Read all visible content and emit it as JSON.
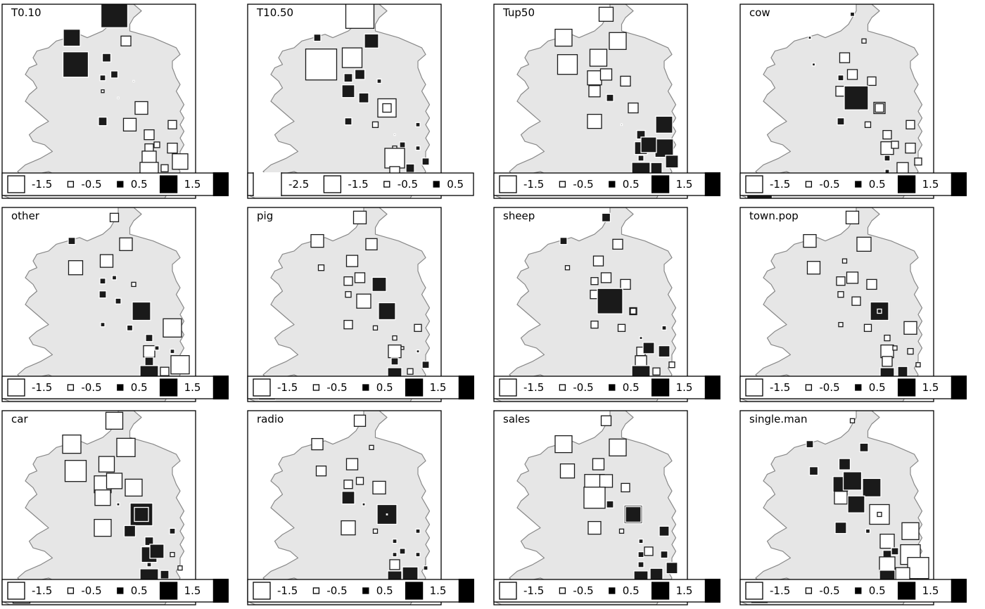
{
  "chart_data": [
    {
      "type": "scatter",
      "subtype": "bubble-square-map",
      "title": "T0.10",
      "legend_values": [
        -1.5,
        -0.5,
        0.5,
        1.5,
        2.5
      ],
      "legend_labels": [
        "-1.5",
        "-0.5",
        "0.5",
        "1.5"
      ],
      "x": [
        29,
        19,
        27,
        18,
        26,
        34,
        29,
        32,
        26,
        26,
        36,
        38,
        30,
        36,
        44,
        33,
        38,
        40,
        44,
        38,
        46,
        42,
        38,
        37,
        5
      ],
      "y": [
        85,
        70,
        72,
        78,
        66,
        65,
        67,
        77,
        53,
        62,
        57,
        49,
        60,
        57,
        45,
        52,
        45,
        46,
        52,
        42,
        41,
        39,
        38,
        34,
        33
      ],
      "values": [
        1.9,
        1.8,
        0.6,
        1.2,
        0.4,
        0.1,
        0.5,
        -0.7,
        0.6,
        -0.2,
        -0.8,
        -0.7,
        0.1,
        -0.9,
        -0.7,
        -0.9,
        -0.6,
        -0.4,
        -0.6,
        -1.0,
        -1.1,
        -0.5,
        -1.3,
        -0.9,
        1.0
      ]
    },
    {
      "type": "scatter",
      "subtype": "bubble-square-map",
      "title": "T10.50",
      "legend_values": [
        -2.5,
        -1.5,
        -0.5,
        0.5,
        1.5
      ],
      "legend_labels": [
        "-2.5",
        "-1.5",
        "-0.5",
        "0.5"
      ],
      "x": [
        29,
        19,
        27,
        18,
        26,
        34,
        29,
        32,
        26,
        26,
        36,
        38,
        30,
        36,
        44,
        33,
        38,
        40,
        44,
        38,
        46,
        42,
        38,
        37,
        5
      ],
      "y": [
        85,
        70,
        72,
        78,
        66,
        65,
        67,
        77,
        53,
        62,
        57,
        49,
        60,
        57,
        45,
        52,
        45,
        46,
        52,
        42,
        41,
        39,
        38,
        34,
        33
      ],
      "values": [
        -2.0,
        -2.2,
        -1.4,
        0.5,
        0.6,
        0.3,
        0.7,
        1.0,
        0.5,
        0.9,
        -1.3,
        0.1,
        0.7,
        -0.6,
        0.3,
        -0.4,
        -0.3,
        0.4,
        0.3,
        -1.4,
        0.5,
        0.6,
        -0.7,
        1.0,
        -0.6
      ]
    },
    {
      "type": "scatter",
      "subtype": "bubble-square-map",
      "title": "Tup50",
      "legend_values": [
        -1.5,
        -0.5,
        0.5,
        1.5,
        2.5
      ],
      "legend_labels": [
        "-1.5",
        "-0.5",
        "0.5",
        "1.5"
      ],
      "x": [
        29,
        19,
        27,
        18,
        26,
        34,
        29,
        32,
        26,
        26,
        36,
        38,
        30,
        36,
        44,
        33,
        38,
        40,
        44,
        38,
        46,
        42,
        38,
        37,
        5
      ],
      "y": [
        85,
        70,
        72,
        78,
        66,
        65,
        67,
        77,
        53,
        62,
        57,
        49,
        60,
        57,
        45,
        52,
        45,
        46,
        52,
        42,
        41,
        39,
        38,
        34,
        33
      ],
      "values": [
        -1.0,
        -1.4,
        -1.2,
        -1.2,
        -1.0,
        -0.7,
        -0.8,
        -1.2,
        -1.0,
        -0.8,
        -0.6,
        0.6,
        0.5,
        -0.7,
        1.3,
        0.1,
        0.9,
        1.1,
        1.2,
        0.4,
        0.9,
        0.8,
        1.3,
        1.2,
        -1.0
      ]
    },
    {
      "type": "scatter",
      "subtype": "bubble-square-map",
      "title": "cow",
      "legend_values": [
        -1.5,
        -0.5,
        0.5,
        1.5,
        2.5
      ],
      "legend_labels": [
        "-1.5",
        "-0.5",
        "0.5",
        "1.5"
      ],
      "x": [
        29,
        19,
        27,
        18,
        26,
        34,
        29,
        32,
        26,
        26,
        36,
        38,
        30,
        36,
        44,
        33,
        38,
        40,
        44,
        38,
        46,
        42,
        38,
        37,
        5
      ],
      "y": [
        85,
        70,
        72,
        78,
        66,
        65,
        67,
        77,
        53,
        62,
        57,
        49,
        60,
        57,
        45,
        52,
        45,
        46,
        52,
        42,
        41,
        39,
        38,
        34,
        33
      ],
      "values": [
        0.3,
        0.2,
        -0.7,
        0.2,
        0.4,
        -0.6,
        -0.7,
        -0.3,
        0.5,
        -0.7,
        -0.8,
        -0.6,
        1.7,
        -0.6,
        -0.7,
        -0.4,
        -0.9,
        -0.5,
        -0.6,
        0.4,
        -0.5,
        -0.8,
        0.3,
        0.3,
        1.8
      ]
    },
    {
      "type": "scatter",
      "subtype": "bubble-square-map",
      "title": "other",
      "legend_values": [
        -1.5,
        -0.5,
        0.5,
        1.5,
        2.5
      ],
      "legend_labels": [
        "-1.5",
        "-0.5",
        "0.5",
        "1.5"
      ],
      "x": [
        29,
        19,
        27,
        18,
        26,
        34,
        29,
        32,
        26,
        26,
        36,
        38,
        30,
        36,
        44,
        33,
        38,
        40,
        44,
        38,
        46,
        42,
        38,
        37,
        5
      ],
      "y": [
        85,
        70,
        72,
        78,
        66,
        65,
        67,
        77,
        53,
        62,
        57,
        49,
        60,
        57,
        45,
        52,
        45,
        46,
        52,
        42,
        41,
        39,
        38,
        34,
        33
      ],
      "values": [
        -0.6,
        -1.0,
        -0.9,
        0.5,
        0.4,
        -0.3,
        0.3,
        -0.9,
        0.3,
        0.5,
        1.2,
        0.5,
        0.4,
        1.3,
        0.3,
        0.4,
        -0.8,
        0.3,
        -1.3,
        0.6,
        -1.3,
        -0.6,
        1.3,
        0.4,
        0.4
      ]
    },
    {
      "type": "scatter",
      "subtype": "bubble-square-map",
      "title": "pig",
      "legend_values": [
        -1.5,
        -0.5,
        0.5,
        1.5,
        2.5
      ],
      "legend_labels": [
        "-1.5",
        "-0.5",
        "0.5",
        "1.5"
      ],
      "x": [
        29,
        19,
        27,
        18,
        26,
        34,
        29,
        32,
        26,
        26,
        36,
        38,
        30,
        36,
        44,
        33,
        38,
        40,
        44,
        38,
        46,
        42,
        38,
        37,
        5
      ],
      "y": [
        85,
        70,
        72,
        78,
        66,
        65,
        67,
        77,
        53,
        62,
        57,
        49,
        60,
        57,
        45,
        52,
        45,
        46,
        52,
        42,
        41,
        39,
        38,
        34,
        33
      ],
      "values": [
        -0.9,
        -0.4,
        -0.8,
        -0.9,
        -0.6,
        1.0,
        -0.7,
        -0.8,
        -0.6,
        -0.4,
        -1.0,
        -0.3,
        -1.0,
        1.2,
        0.2,
        -0.3,
        -0.9,
        -0.2,
        -0.5,
        0.5,
        0.5,
        -0.4,
        1.0,
        1.1,
        1.2
      ]
    },
    {
      "type": "scatter",
      "subtype": "bubble-square-map",
      "title": "sheep",
      "legend_values": [
        -1.5,
        -0.5,
        0.5,
        1.5,
        2.5
      ],
      "legend_labels": [
        "-1.5",
        "-0.5",
        "0.5",
        "1.5"
      ],
      "x": [
        29,
        19,
        27,
        18,
        26,
        34,
        29,
        32,
        26,
        26,
        36,
        38,
        30,
        36,
        44,
        33,
        38,
        40,
        44,
        38,
        46,
        42,
        38,
        37,
        5
      ],
      "y": [
        85,
        70,
        72,
        78,
        66,
        65,
        67,
        77,
        53,
        62,
        57,
        49,
        60,
        57,
        45,
        52,
        45,
        46,
        52,
        42,
        41,
        39,
        38,
        34,
        33
      ],
      "values": [
        0.6,
        -0.3,
        -0.7,
        0.5,
        -0.5,
        -0.7,
        -0.7,
        -0.7,
        -0.5,
        -0.6,
        -0.5,
        0.2,
        1.8,
        -0.4,
        0.8,
        -0.5,
        -0.6,
        0.8,
        0.3,
        -0.8,
        -0.4,
        -0.5,
        1.3,
        1.2,
        0.4
      ]
    },
    {
      "type": "scatter",
      "subtype": "bubble-square-map",
      "title": "town.pop",
      "legend_values": [
        -1.5,
        -0.5,
        0.5,
        1.5,
        2.5
      ],
      "legend_labels": [
        "-1.5",
        "-0.5",
        "0.5",
        "1.5"
      ],
      "x": [
        29,
        19,
        27,
        18,
        26,
        34,
        29,
        32,
        26,
        26,
        36,
        38,
        30,
        36,
        44,
        33,
        38,
        40,
        44,
        38,
        46,
        42,
        38,
        37,
        5
      ],
      "y": [
        85,
        70,
        72,
        78,
        66,
        65,
        67,
        77,
        53,
        62,
        57,
        49,
        60,
        57,
        45,
        52,
        45,
        46,
        52,
        42,
        41,
        39,
        38,
        34,
        33
      ],
      "values": [
        -0.9,
        -0.9,
        -0.3,
        -0.9,
        -0.6,
        -0.7,
        -0.8,
        -1.0,
        -0.3,
        -0.4,
        1.3,
        -0.4,
        -0.6,
        0.3,
        -0.4,
        -0.5,
        -0.9,
        -0.3,
        -0.9,
        -0.7,
        -0.3,
        0.7,
        1.0,
        0.5,
        0.7
      ]
    },
    {
      "type": "scatter",
      "subtype": "bubble-square-map",
      "title": "car",
      "legend_values": [
        -1.5,
        -0.5,
        0.5,
        1.5,
        2.5
      ],
      "legend_labels": [
        "-1.5",
        "-0.5",
        "0.5",
        "1.5"
      ],
      "x": [
        29,
        19,
        27,
        18,
        26,
        34,
        29,
        32,
        26,
        26,
        36,
        38,
        30,
        36,
        44,
        33,
        38,
        40,
        44,
        38,
        46,
        42,
        38,
        37,
        5
      ],
      "y": [
        85,
        70,
        72,
        78,
        66,
        65,
        67,
        77,
        53,
        62,
        57,
        49,
        60,
        57,
        45,
        52,
        45,
        46,
        52,
        42,
        41,
        39,
        38,
        34,
        33
      ],
      "values": [
        -1.2,
        -1.5,
        -1.1,
        -1.3,
        -1.2,
        -1.2,
        -1.1,
        -1.3,
        -1.2,
        -1.1,
        1.6,
        0.6,
        0.2,
        1.0,
        -0.3,
        0.8,
        1.1,
        1.0,
        0.4,
        0.3,
        -0.3,
        0.6,
        1.3,
        1.0,
        -1.2
      ]
    },
    {
      "type": "scatter",
      "subtype": "bubble-square-map",
      "title": "radio",
      "legend_values": [
        -1.5,
        -0.5,
        0.5,
        1.5,
        2.5
      ],
      "legend_labels": [
        "-1.5",
        "-0.5",
        "0.5",
        "1.5"
      ],
      "x": [
        29,
        19,
        27,
        18,
        26,
        34,
        29,
        32,
        26,
        26,
        36,
        38,
        30,
        36,
        44,
        33,
        38,
        40,
        44,
        38,
        46,
        42,
        38,
        37,
        5
      ],
      "y": [
        85,
        70,
        72,
        78,
        66,
        65,
        67,
        77,
        53,
        62,
        57,
        49,
        60,
        57,
        45,
        52,
        45,
        46,
        52,
        42,
        41,
        39,
        38,
        34,
        33
      ],
      "values": [
        -0.8,
        -0.7,
        -0.8,
        -0.8,
        -0.6,
        -0.9,
        -0.5,
        -0.3,
        -1.0,
        0.9,
        1.4,
        0.3,
        0.2,
        -0.2,
        0.3,
        -0.3,
        0.3,
        0.4,
        0.3,
        -0.7,
        0.3,
        1.1,
        1.0,
        0.5,
        -0.8
      ]
    },
    {
      "type": "scatter",
      "subtype": "bubble-square-map",
      "title": "sales",
      "legend_values": [
        -1.5,
        -0.5,
        0.5,
        1.5,
        2.5
      ],
      "legend_labels": [
        "-1.5",
        "-0.5",
        "0.5",
        "1.5"
      ],
      "x": [
        29,
        19,
        27,
        18,
        26,
        34,
        29,
        32,
        26,
        26,
        36,
        38,
        30,
        36,
        44,
        33,
        38,
        40,
        44,
        38,
        46,
        42,
        38,
        37,
        5
      ],
      "y": [
        85,
        70,
        72,
        78,
        66,
        65,
        67,
        77,
        53,
        62,
        57,
        49,
        60,
        57,
        45,
        52,
        45,
        46,
        52,
        42,
        41,
        39,
        38,
        34,
        33
      ],
      "values": [
        -0.7,
        -1.0,
        -0.8,
        -1.2,
        -1.4,
        -0.6,
        -0.9,
        -1.2,
        -0.9,
        -1.5,
        1.3,
        0.3,
        0.5,
        1.1,
        0.5,
        -0.3,
        0.4,
        -0.6,
        0.7,
        0.4,
        0.8,
        0.9,
        1.0,
        0.9,
        -0.8
      ]
    },
    {
      "type": "scatter",
      "subtype": "bubble-square-map",
      "title": "single.man",
      "legend_values": [
        -1.5,
        -0.5,
        0.5,
        1.5,
        2.5
      ],
      "legend_labels": [
        "-1.5",
        "-0.5",
        "0.5",
        "1.5"
      ],
      "x": [
        29,
        19,
        27,
        18,
        26,
        34,
        29,
        32,
        26,
        26,
        36,
        38,
        30,
        36,
        44,
        33,
        38,
        40,
        44,
        38,
        46,
        42,
        38,
        37,
        5
      ],
      "y": [
        85,
        70,
        72,
        78,
        66,
        65,
        67,
        77,
        53,
        62,
        57,
        49,
        60,
        57,
        45,
        52,
        45,
        46,
        52,
        42,
        41,
        39,
        38,
        34,
        33
      ],
      "values": [
        -0.3,
        0.6,
        0.8,
        0.5,
        1.1,
        1.3,
        1.3,
        0.6,
        0.8,
        -0.9,
        -1.4,
        -1.0,
        1.2,
        -0.3,
        -1.4,
        0.3,
        0.6,
        0.5,
        -1.2,
        -1.1,
        -1.5,
        -1.0,
        1.1,
        0.7,
        -1.1
      ]
    }
  ]
}
